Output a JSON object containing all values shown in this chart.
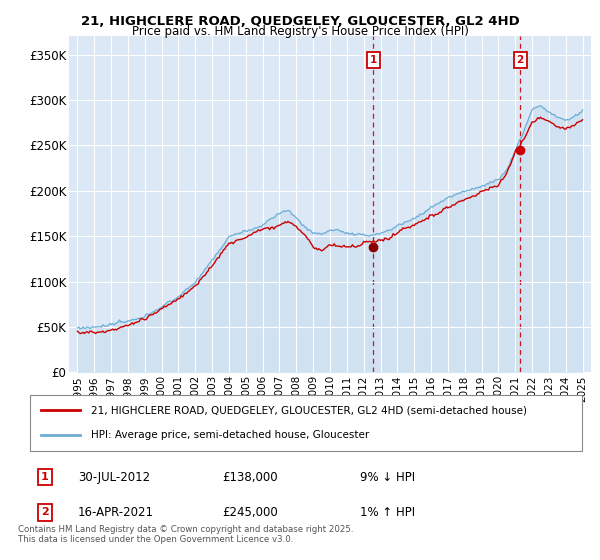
{
  "title": "21, HIGHCLERE ROAD, QUEDGELEY, GLOUCESTER, GL2 4HD",
  "subtitle": "Price paid vs. HM Land Registry's House Price Index (HPI)",
  "ylabel_ticks": [
    "£0",
    "£50K",
    "£100K",
    "£150K",
    "£200K",
    "£250K",
    "£300K",
    "£350K"
  ],
  "ytick_values": [
    0,
    50000,
    100000,
    150000,
    200000,
    250000,
    300000,
    350000
  ],
  "ylim": [
    0,
    370000
  ],
  "hpi_color": "#6baed6",
  "hpi_fill_color": "#c6dbef",
  "price_color": "#cc0000",
  "marker_color": "#cc0000",
  "vline_color": "#cc0000",
  "background_color": "#dce8f5",
  "legend_label_price": "21, HIGHCLERE ROAD, QUEDGELEY, GLOUCESTER, GL2 4HD (semi-detached house)",
  "legend_label_hpi": "HPI: Average price, semi-detached house, Gloucester",
  "annotation1_num": "1",
  "annotation1_date": "30-JUL-2012",
  "annotation1_price": "£138,000",
  "annotation1_hpi": "9% ↓ HPI",
  "annotation2_num": "2",
  "annotation2_date": "16-APR-2021",
  "annotation2_price": "£245,000",
  "annotation2_hpi": "1% ↑ HPI",
  "footnote": "Contains HM Land Registry data © Crown copyright and database right 2025.\nThis data is licensed under the Open Government Licence v3.0.",
  "sale1_year": 2012.58,
  "sale1_price": 138000,
  "sale2_year": 2021.29,
  "sale2_price": 245000
}
